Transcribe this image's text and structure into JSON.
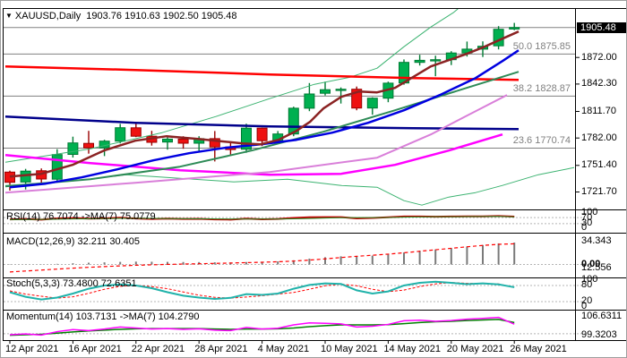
{
  "header": {
    "symbol": "XAUUSD,Daily",
    "ohlc": "1903.76 1910.63 1902.50 1905.48"
  },
  "price_scale": {
    "current_badge": "1905.48",
    "ticks": [
      {
        "label": "1872.00",
        "value": 1872.0
      },
      {
        "label": "1842.30",
        "value": 1842.3
      },
      {
        "label": "1811.70",
        "value": 1811.7
      },
      {
        "label": "1782.00",
        "value": 1782.0
      },
      {
        "label": "1751.40",
        "value": 1751.4
      },
      {
        "label": "1721.70",
        "value": 1721.7
      }
    ]
  },
  "fib": [
    {
      "label": "50.0 1875.85",
      "price": 1875.85
    },
    {
      "label": "38.2 1828.87",
      "price": 1828.87
    },
    {
      "label": "23.6 1770.74",
      "price": 1770.74
    }
  ],
  "x_axis": {
    "labels": [
      {
        "i": 0,
        "label": "12 Apr 2021"
      },
      {
        "i": 4,
        "label": "16 Apr 2021"
      },
      {
        "i": 8,
        "label": "22 Apr 2021"
      },
      {
        "i": 12,
        "label": "28 Apr 2021"
      },
      {
        "i": 16,
        "label": "4 May 2021"
      },
      {
        "i": 20,
        "label": "10 May 2021"
      },
      {
        "i": 24,
        "label": "14 May 2021"
      },
      {
        "i": 28,
        "label": "20 May 2021"
      },
      {
        "i": 32,
        "label": "26 May 2021"
      }
    ]
  },
  "panels": {
    "rsi": {
      "label": "RSI(14) 76.7074 ->MA(7) 75.0779",
      "scale": [
        "100",
        "70",
        "30",
        "0"
      ]
    },
    "macd": {
      "label": "MACD(12,26,9) 32.211 30.405",
      "scale": [
        "34.343",
        "0.00",
        "12.556"
      ]
    },
    "stoch": {
      "label": "Stoch(5,3,3) 73.4800 72.6351",
      "scale": [
        "100",
        "80",
        "20",
        "0"
      ]
    },
    "momentum": {
      "label": "Momentum(14) 103.7131 ->MA(7) 104.2790",
      "scale": [
        "106.6311",
        "99.3203"
      ]
    }
  },
  "colors": {
    "bull": "#00b050",
    "bull_edge": "#007a33",
    "bear": "#ee1111",
    "bear_edge": "#990000",
    "grid": "#808080",
    "level_dash": "#b4b4b4",
    "badge_bg": "#000000",
    "badge_fg": "#ffffff"
  },
  "chart_data": {
    "type": "candlestick",
    "symbol": "XAUUSD",
    "timeframe": "Daily",
    "current_price": 1905.48,
    "candles": [
      {
        "d": "12 Apr",
        "o": 1743.9,
        "h": 1745.5,
        "l": 1723.3,
        "c": 1732.5
      },
      {
        "d": "13 Apr",
        "o": 1732.8,
        "h": 1747.5,
        "l": 1724.5,
        "c": 1745.0
      },
      {
        "d": "14 Apr",
        "o": 1745.4,
        "h": 1748.0,
        "l": 1731.0,
        "c": 1736.2
      },
      {
        "d": "15 Apr",
        "o": 1736.0,
        "h": 1769.5,
        "l": 1734.0,
        "c": 1763.5
      },
      {
        "d": "16 Apr",
        "o": 1763.7,
        "h": 1783.5,
        "l": 1760.2,
        "c": 1776.5
      },
      {
        "d": "19 Apr",
        "o": 1776.0,
        "h": 1790.0,
        "l": 1764.5,
        "c": 1771.0
      },
      {
        "d": "20 Apr",
        "o": 1771.0,
        "h": 1780.0,
        "l": 1761.8,
        "c": 1778.5
      },
      {
        "d": "21 Apr",
        "o": 1778.5,
        "h": 1797.8,
        "l": 1776.0,
        "c": 1793.5
      },
      {
        "d": "22 Apr",
        "o": 1793.4,
        "h": 1798.0,
        "l": 1783.0,
        "c": 1784.0
      },
      {
        "d": "23 Apr",
        "o": 1784.0,
        "h": 1790.0,
        "l": 1773.5,
        "c": 1777.2
      },
      {
        "d": "26 Apr",
        "o": 1777.5,
        "h": 1784.5,
        "l": 1769.0,
        "c": 1780.8
      },
      {
        "d": "27 Apr",
        "o": 1780.8,
        "h": 1784.0,
        "l": 1770.0,
        "c": 1776.2
      },
      {
        "d": "28 Apr",
        "o": 1776.2,
        "h": 1784.0,
        "l": 1767.0,
        "c": 1781.3
      },
      {
        "d": "29 Apr",
        "o": 1781.3,
        "h": 1789.8,
        "l": 1755.8,
        "c": 1772.0
      },
      {
        "d": "30 Apr",
        "o": 1772.0,
        "h": 1777.5,
        "l": 1762.5,
        "c": 1769.1
      },
      {
        "d": "3 May",
        "o": 1769.5,
        "h": 1798.0,
        "l": 1765.5,
        "c": 1793.0
      },
      {
        "d": "4 May",
        "o": 1793.0,
        "h": 1793.5,
        "l": 1773.0,
        "c": 1779.0
      },
      {
        "d": "5 May",
        "o": 1779.0,
        "h": 1789.8,
        "l": 1777.0,
        "c": 1786.5
      },
      {
        "d": "6 May",
        "o": 1786.5,
        "h": 1817.0,
        "l": 1784.0,
        "c": 1815.3
      },
      {
        "d": "7 May",
        "o": 1815.3,
        "h": 1843.4,
        "l": 1812.0,
        "c": 1831.2
      },
      {
        "d": "10 May",
        "o": 1832.0,
        "h": 1845.0,
        "l": 1829.5,
        "c": 1836.0
      },
      {
        "d": "11 May",
        "o": 1836.0,
        "h": 1838.5,
        "l": 1820.5,
        "c": 1836.5
      },
      {
        "d": "12 May",
        "o": 1836.5,
        "h": 1839.5,
        "l": 1813.0,
        "c": 1815.5
      },
      {
        "d": "13 May",
        "o": 1815.5,
        "h": 1827.5,
        "l": 1808.0,
        "c": 1826.5
      },
      {
        "d": "14 May",
        "o": 1826.5,
        "h": 1845.0,
        "l": 1822.0,
        "c": 1843.3
      },
      {
        "d": "17 May",
        "o": 1843.5,
        "h": 1869.8,
        "l": 1841.5,
        "c": 1866.5
      },
      {
        "d": "18 May",
        "o": 1866.5,
        "h": 1875.0,
        "l": 1863.0,
        "c": 1868.8
      },
      {
        "d": "19 May",
        "o": 1868.8,
        "h": 1874.0,
        "l": 1851.0,
        "c": 1869.5
      },
      {
        "d": "20 May",
        "o": 1869.5,
        "h": 1879.0,
        "l": 1863.5,
        "c": 1877.0
      },
      {
        "d": "21 May",
        "o": 1877.0,
        "h": 1889.8,
        "l": 1873.0,
        "c": 1881.3
      },
      {
        "d": "24 May",
        "o": 1881.3,
        "h": 1890.0,
        "l": 1872.5,
        "c": 1884.5
      },
      {
        "d": "25 May",
        "o": 1885.0,
        "h": 1907.0,
        "l": 1881.0,
        "c": 1903.5
      },
      {
        "d": "26 May",
        "o": 1903.76,
        "h": 1910.63,
        "l": 1902.5,
        "c": 1905.48
      }
    ],
    "overlays": [
      {
        "name": "envelope-upper",
        "color": "#3cb371",
        "width": 1,
        "points": [
          [
            5,
            1755
          ],
          [
            100,
            1770
          ],
          [
            180,
            1788
          ],
          [
            240,
            1806
          ],
          [
            300,
            1826
          ],
          [
            350,
            1842
          ],
          [
            390,
            1850
          ],
          [
            420,
            1860
          ],
          [
            450,
            1884
          ],
          [
            480,
            1906
          ],
          [
            505,
            1922
          ],
          [
            522,
            1936
          ]
        ]
      },
      {
        "name": "envelope-lower",
        "color": "#3cb371",
        "width": 1,
        "points": [
          [
            5,
            1729
          ],
          [
            80,
            1734
          ],
          [
            140,
            1741
          ],
          [
            200,
            1737
          ],
          [
            260,
            1733
          ],
          [
            320,
            1736
          ],
          [
            380,
            1729
          ],
          [
            420,
            1727
          ],
          [
            450,
            1712
          ],
          [
            470,
            1707
          ],
          [
            500,
            1716
          ],
          [
            530,
            1721
          ],
          [
            560,
            1729
          ],
          [
            600,
            1741
          ],
          [
            640,
            1749
          ]
        ]
      },
      {
        "name": "ma-red-flat",
        "color": "#ff0000",
        "width": 2.5,
        "points": [
          [
            5,
            1862
          ],
          [
            150,
            1858
          ],
          [
            300,
            1853
          ],
          [
            460,
            1849
          ],
          [
            578,
            1847
          ]
        ]
      },
      {
        "name": "ma-navy",
        "color": "#00008b",
        "width": 2.5,
        "points": [
          [
            5,
            1806
          ],
          [
            150,
            1799
          ],
          [
            300,
            1795
          ],
          [
            460,
            1793
          ],
          [
            578,
            1792
          ]
        ]
      },
      {
        "name": "ma-magenta",
        "color": "#ff00ff",
        "width": 2.5,
        "points": [
          [
            5,
            1763
          ],
          [
            100,
            1754
          ],
          [
            200,
            1746
          ],
          [
            300,
            1741
          ],
          [
            380,
            1742
          ],
          [
            440,
            1752
          ],
          [
            500,
            1768
          ],
          [
            560,
            1786
          ]
        ]
      },
      {
        "name": "ma-violet",
        "color": "#d97fd9",
        "width": 2,
        "points": [
          [
            5,
            1721
          ],
          [
            150,
            1732
          ],
          [
            300,
            1744
          ],
          [
            420,
            1760
          ],
          [
            480,
            1786
          ],
          [
            530,
            1812
          ],
          [
            565,
            1830
          ]
        ]
      },
      {
        "name": "ma-green",
        "color": "#2e8b57",
        "width": 2,
        "points": [
          [
            5,
            1728
          ],
          [
            100,
            1736
          ],
          [
            200,
            1750
          ],
          [
            280,
            1768
          ],
          [
            360,
            1789
          ],
          [
            440,
            1813
          ],
          [
            520,
            1838
          ],
          [
            578,
            1856
          ]
        ]
      },
      {
        "name": "ma-slow-blue",
        "color": "#0000e0",
        "width": 2.5,
        "points": [
          [
            10,
            1727
          ],
          [
            50,
            1731
          ],
          [
            90,
            1738
          ],
          [
            130,
            1747
          ],
          [
            170,
            1757
          ],
          [
            210,
            1765
          ],
          [
            250,
            1771
          ],
          [
            290,
            1775
          ],
          [
            330,
            1780
          ],
          [
            370,
            1788
          ],
          [
            410,
            1799
          ],
          [
            450,
            1813
          ],
          [
            490,
            1830
          ],
          [
            530,
            1849
          ],
          [
            560,
            1868
          ],
          [
            578,
            1880
          ]
        ]
      },
      {
        "name": "ma-fast-maroon",
        "color": "#8b2323",
        "width": 2.5,
        "points": [
          [
            10,
            1739
          ],
          [
            45,
            1742
          ],
          [
            80,
            1752
          ],
          [
            115,
            1768
          ],
          [
            150,
            1779
          ],
          [
            185,
            1784
          ],
          [
            220,
            1781
          ],
          [
            250,
            1778
          ],
          [
            270,
            1776
          ],
          [
            290,
            1775
          ],
          [
            310,
            1780
          ],
          [
            330,
            1790
          ],
          [
            345,
            1800
          ],
          [
            360,
            1815
          ],
          [
            380,
            1828
          ],
          [
            400,
            1834
          ],
          [
            420,
            1833
          ],
          [
            440,
            1838
          ],
          [
            460,
            1850
          ],
          [
            480,
            1862
          ],
          [
            500,
            1869
          ],
          [
            520,
            1876
          ],
          [
            540,
            1884
          ],
          [
            560,
            1893
          ],
          [
            578,
            1901
          ]
        ]
      }
    ],
    "indicators": {
      "rsi": {
        "levels": [
          70,
          30
        ],
        "main": {
          "color": "#c00000",
          "width": 2,
          "values": [
            58,
            60,
            57,
            64,
            67,
            63,
            65,
            69,
            64,
            61,
            63,
            61,
            62,
            58,
            57,
            63,
            59,
            61,
            68,
            72,
            73,
            73,
            65,
            68,
            72,
            77,
            77,
            76,
            77,
            78,
            78,
            80,
            76.7
          ]
        },
        "signal": {
          "color": "#228b22",
          "width": 1,
          "values": [
            57,
            57.5,
            58,
            59.5,
            61,
            62,
            63.5,
            64.5,
            65,
            64.5,
            63.5,
            62.5,
            62,
            61,
            60,
            60,
            60,
            60,
            61.5,
            64,
            67,
            69.5,
            70,
            70,
            70.5,
            72.5,
            74.5,
            75.5,
            76,
            76.5,
            77,
            78,
            75.1
          ]
        }
      },
      "macd": {
        "levels": [
          0
        ],
        "hist": {
          "color": "#7a7a7a",
          "values": [
            -0.4,
            -0.2,
            0.3,
            0.9,
            1.8,
            2.6,
            3.1,
            3.8,
            4.2,
            4.0,
            3.8,
            3.6,
            3.5,
            3.2,
            3.0,
            3.6,
            4.0,
            4.6,
            6.2,
            8.6,
            10.6,
            12.0,
            12.4,
            13.0,
            14.6,
            17.6,
            20.2,
            22.2,
            24.2,
            26.4,
            28.6,
            31.0,
            32.2
          ]
        },
        "signal": {
          "color": "#ff0000",
          "width": 1.2,
          "dash": "4,3",
          "values": [
            -11,
            -9.6,
            -8.2,
            -6.8,
            -5.4,
            -4.2,
            -3.1,
            -2.1,
            -1.2,
            -0.5,
            0.1,
            0.6,
            1.1,
            1.6,
            2.1,
            2.7,
            3.3,
            4.0,
            5.0,
            6.4,
            8.2,
            10.2,
            12.0,
            13.6,
            15.2,
            17.2,
            19.4,
            21.6,
            23.8,
            26.0,
            28.0,
            29.6,
            30.4
          ]
        }
      },
      "stoch": {
        "levels": [
          80,
          20
        ],
        "main": {
          "color": "#20b2aa",
          "width": 2,
          "values": [
            55,
            38,
            28,
            35,
            50,
            68,
            80,
            84,
            80,
            70,
            55,
            42,
            35,
            30,
            34,
            48,
            45,
            50,
            68,
            82,
            88,
            86,
            62,
            50,
            58,
            80,
            90,
            94,
            90,
            85,
            88,
            84,
            73.5
          ]
        },
        "signal": {
          "color": "#ff0000",
          "width": 1,
          "dash": "3,2",
          "values": [
            60,
            48,
            40,
            33,
            38,
            51,
            66,
            77,
            81,
            76,
            68,
            56,
            44,
            36,
            33,
            37,
            42,
            48,
            54,
            66,
            79,
            85,
            79,
            66,
            57,
            63,
            76,
            86,
            91,
            88,
            87,
            86,
            72.6
          ]
        }
      },
      "momentum": {
        "levels": [
          100
        ],
        "main": {
          "color": "#ff00ff",
          "width": 1.5,
          "values": [
            99.6,
            99.9,
            99.5,
            100.8,
            101.6,
            101.2,
            101.8,
            102.6,
            102.2,
            101.8,
            102.0,
            101.7,
            101.9,
            101.4,
            101.2,
            102.4,
            101.8,
            102.1,
            103.4,
            104.2,
            104.0,
            103.8,
            102.6,
            102.9,
            103.6,
            105.0,
            105.2,
            104.8,
            105.1,
            105.6,
            105.9,
            106.3,
            103.7
          ]
        },
        "signal": {
          "color": "#008000",
          "width": 1.5,
          "values": [
            99.4,
            99.6,
            99.8,
            100.2,
            100.7,
            101.1,
            101.4,
            101.7,
            101.9,
            102.0,
            102.0,
            102.0,
            102.0,
            101.8,
            101.7,
            101.8,
            101.8,
            101.9,
            102.2,
            102.7,
            103.1,
            103.4,
            103.4,
            103.4,
            103.5,
            103.9,
            104.3,
            104.6,
            104.8,
            105.1,
            105.3,
            105.5,
            104.3
          ]
        }
      }
    }
  }
}
